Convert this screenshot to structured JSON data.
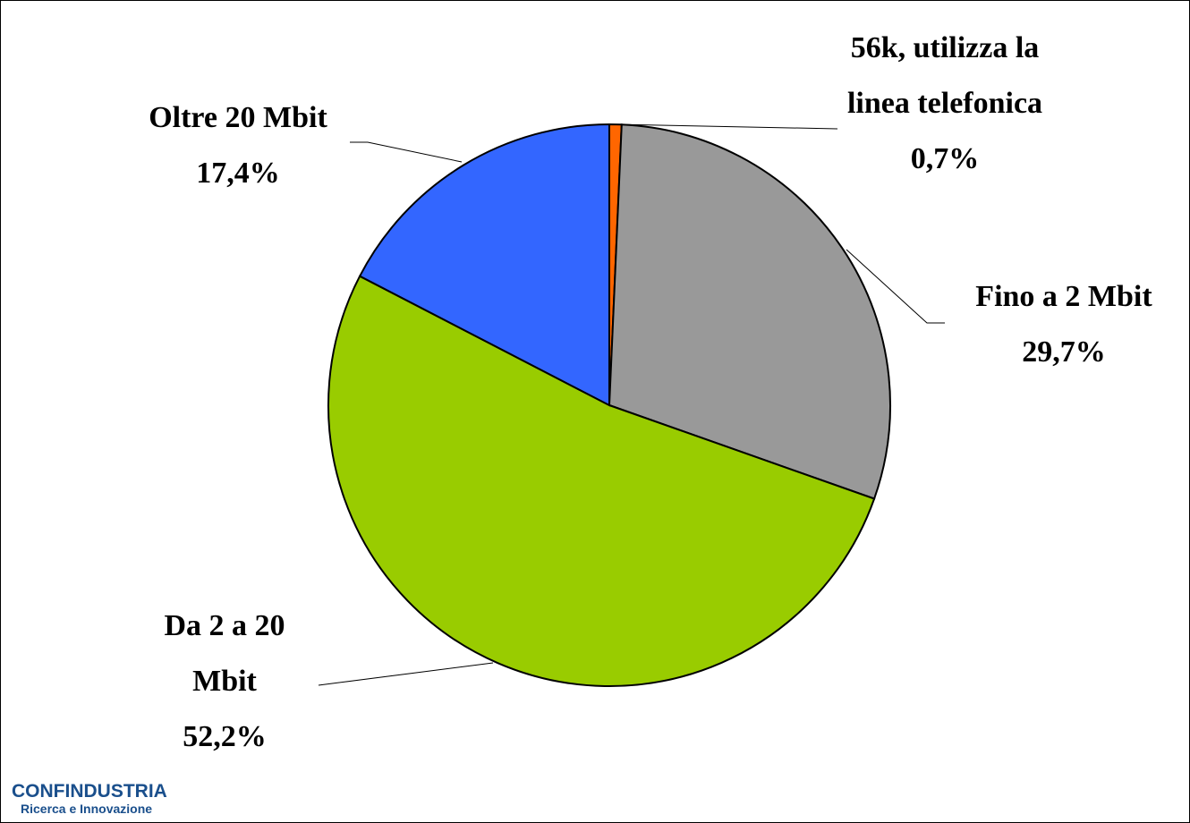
{
  "chart_data": {
    "type": "pie",
    "categories": [
      "56k, utilizza la linea telefonica",
      "Fino a 2 Mbit",
      "Da 2 a 20 Mbit",
      "Oltre 20 Mbit"
    ],
    "values": [
      0.7,
      29.7,
      52.2,
      17.4
    ],
    "value_labels": [
      "0,7%",
      "29,7%",
      "52,2%",
      "17,4%"
    ],
    "colors": [
      "#ff6600",
      "#999999",
      "#99cc00",
      "#3366ff"
    ]
  },
  "logo": {
    "name": "CONFINDUSTRIA",
    "subtitle": "Ricerca e Innovazione"
  }
}
